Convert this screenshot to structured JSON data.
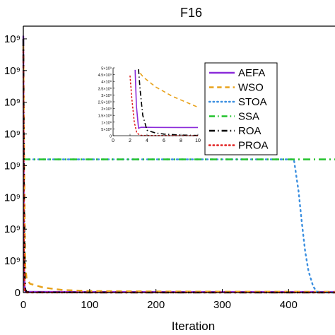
{
  "chart_data": [
    {
      "type": "line",
      "title": "F16",
      "xlabel": "Iteration",
      "ylabel": "",
      "xlim": [
        0,
        470
      ],
      "ylim": [
        0,
        4200000000.0
      ],
      "x_ticks": [
        0,
        100,
        200,
        300,
        400
      ],
      "y_ticks": [
        0,
        500000000.0,
        1000000000.0,
        1500000000.0,
        2000000000.0,
        2500000000.0,
        3000000000.0,
        3500000000.0,
        4000000000.0
      ],
      "y_tick_labels": [
        "0",
        "10⁹",
        "10⁹",
        "10⁹",
        "10⁹",
        "10⁹",
        "10⁹",
        "10⁹",
        "10⁹"
      ],
      "legend_position": "inside-right",
      "series": [
        {
          "name": "AEFA",
          "color": "#8B2BD9",
          "style": "solid",
          "x": [
            0,
            1,
            2,
            3,
            5,
            10,
            100,
            200,
            300,
            400,
            470
          ],
          "y": [
            4050000000.0,
            600000000.0,
            80000000.0,
            15000000.0,
            12000000.0,
            11000000.0,
            10500000.0,
            10000000.0,
            10000000.0,
            10000000.0,
            10000000.0
          ]
        },
        {
          "name": "WSO",
          "color": "#E8A21A",
          "style": "dash",
          "x": [
            0,
            1,
            2,
            3,
            5,
            10,
            30,
            60,
            100,
            200,
            300,
            400,
            470
          ],
          "y": [
            3900000000.0,
            2500000000.0,
            1200000000.0,
            420000000.0,
            220000000.0,
            140000000.0,
            80000000.0,
            40000000.0,
            25000000.0,
            18000000.0,
            15000000.0,
            14000000.0,
            13000000.0
          ]
        },
        {
          "name": "STOA",
          "color": "#3B8FE0",
          "style": "dot",
          "x": [
            0,
            1,
            2,
            3,
            100,
            200,
            300,
            408,
            415,
            420,
            425,
            430,
            437,
            442,
            447,
            470
          ],
          "y": [
            2100000000.0,
            2100000000.0,
            2100000000.0,
            2100000000.0,
            2100000000.0,
            2100000000.0,
            2100000000.0,
            2100000000.0,
            1600000000.0,
            1100000000.0,
            650000000.0,
            340000000.0,
            100000000.0,
            20000000.0,
            1000000.0,
            0
          ]
        },
        {
          "name": "SSA",
          "color": "#22C22C",
          "style": "dashdot",
          "x": [
            0,
            1,
            100,
            200,
            300,
            400,
            470
          ],
          "y": [
            2100000000.0,
            2100000000.0,
            2100000000.0,
            2100000000.0,
            2100000000.0,
            2100000000.0,
            2100000000.0
          ]
        },
        {
          "name": "ROA",
          "color": "#000000",
          "style": "dashdot",
          "x": [
            0,
            1,
            2,
            3,
            5,
            10,
            50,
            100,
            200,
            300,
            400,
            470
          ],
          "y": [
            4000000000.0,
            1500000000.0,
            300000000.0,
            50000000.0,
            10000000.0,
            3000000.0,
            2000000.0,
            1500000.0,
            1000000.0,
            1000000.0,
            1000000.0,
            1000000.0
          ]
        },
        {
          "name": "PROA",
          "color": "#E01E1E",
          "style": "dot",
          "x": [
            0,
            1,
            2,
            3,
            5,
            10,
            100,
            200,
            300,
            400,
            470
          ],
          "y": [
            3800000000.0,
            500000000.0,
            30000000.0,
            3000000.0,
            1000000.0,
            800000.0,
            500000.0,
            400000.0,
            300000.0,
            300000.0,
            300000.0
          ]
        }
      ]
    },
    {
      "type": "line",
      "title": "",
      "xlim": [
        0,
        10
      ],
      "ylim": [
        0,
        5000000000.0
      ],
      "x_ticks": [
        0,
        2,
        4,
        6,
        8,
        10
      ],
      "y_ticks": [
        0,
        500000000.0,
        1000000000.0,
        1500000000.0,
        2000000000.0,
        2500000000.0,
        3000000000.0,
        3500000000.0,
        4000000000.0,
        4500000000.0,
        5000000000.0
      ],
      "y_tick_labels": [
        "0",
        "5×10⁸",
        "1×10⁹",
        "1.5×10⁹",
        "2×10⁹",
        "2.5×10⁹",
        "3×10⁹",
        "3.5×10⁹",
        "4×10⁹",
        "4.5×10⁹",
        "5×10⁹"
      ],
      "series": [
        {
          "name": "AEFA",
          "color": "#8B2BD9",
          "style": "solid",
          "x": [
            2.6,
            2.75,
            3.0,
            3.3,
            5,
            8,
            10
          ],
          "y": [
            4850000000.0,
            2200000000.0,
            550000000.0,
            620000000.0,
            610000000.0,
            600000000.0,
            600000000.0
          ]
        },
        {
          "name": "WSO",
          "color": "#E8A21A",
          "style": "dash",
          "x": [
            3.2,
            3.6,
            5,
            7,
            10
          ],
          "y": [
            4600000000.0,
            4300000000.0,
            3600000000.0,
            2900000000.0,
            2100000000.0
          ]
        },
        {
          "name": "ROA",
          "color": "#000000",
          "style": "dashdot",
          "x": [
            3.0,
            3.2,
            3.5,
            4,
            5,
            6,
            7,
            8,
            9,
            10
          ],
          "y": [
            4900000000.0,
            3300000000.0,
            1500000000.0,
            400000000.0,
            200000000.0,
            120000000.0,
            80000000.0,
            50000000.0,
            30000000.0,
            20000000.0
          ]
        },
        {
          "name": "PROA",
          "color": "#E01E1E",
          "style": "dot",
          "x": [
            2.0,
            2.2,
            2.5,
            2.8,
            3.2,
            4,
            10
          ],
          "y": [
            4400000000.0,
            2800000000.0,
            1000000000.0,
            200000000.0,
            30000000.0,
            10000000.0,
            5000000.0
          ]
        }
      ]
    }
  ]
}
